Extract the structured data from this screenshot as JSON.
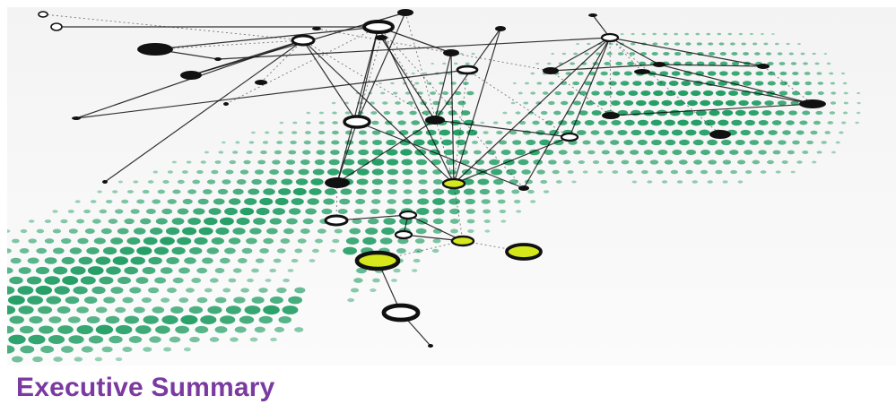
{
  "document": {
    "title": "Executive Summary"
  },
  "theme": {
    "title_color": "#7a3aa0",
    "dot_color": "#1a9a5e",
    "highlight_node_color": "#d4e81c",
    "node_stroke_color": "#111111"
  },
  "hero_image": {
    "description_icon": "network-graph-illustration"
  }
}
